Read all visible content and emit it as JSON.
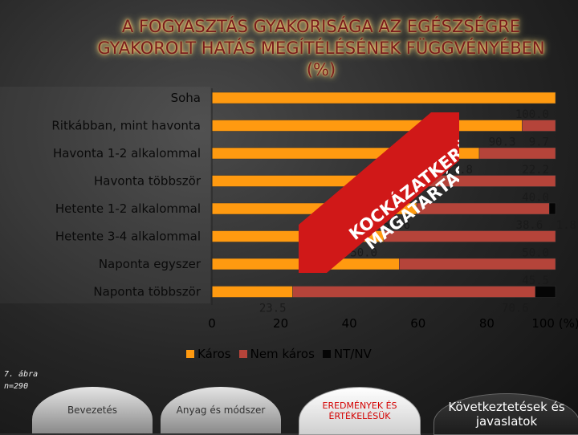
{
  "title_lines": [
    "A FOGYASZTÁS GYAKORISÁGA AZ EGÉSZSÉGRE",
    "GYAKOROLT HATÁS MEGÍTÉLÉSÉNEK FÜGGVÉNYÉBEN",
    "(%)"
  ],
  "sticker": {
    "line1": "KOCKÁZATKERÜLŐ",
    "line2": "MAGATARTÁS",
    "color": "#d01818"
  },
  "figure_note": [
    "7. ábra",
    "n=290"
  ],
  "nav": {
    "intro": "Bevezetés",
    "method": "Anyag és módszer",
    "results": "EREDMÉNYEK ÉS ÉRTÉKELÉSÜK",
    "conclusions": "Következtetések és javaslatok"
  },
  "colors": {
    "harmful": "#ff9a10",
    "not_harmful": "#b5443a",
    "nt_nv": "#050505"
  },
  "chart_data": {
    "type": "bar",
    "orientation": "horizontal",
    "stacked": true,
    "title": "A FOGYASZTÁS GYAKORISÁGA AZ EGÉSZSÉGRE GYAKOROLT HATÁS MEGÍTÉLÉSÉNEK FÜGGVÉNYÉBEN (%)",
    "categories": [
      "Soha",
      "Ritkábban, mint havonta",
      "Havonta 1-2 alkalommal",
      "Havonta többször",
      "Hetente 1-2 alkalommal",
      "Hetente 3-4 alkalommal",
      "Naponta egyszer",
      "Naponta többször"
    ],
    "series": [
      {
        "name": "Káros",
        "values": [
          100.0,
          90.3,
          77.8,
          60.0,
          59.6,
          50.0,
          54.5,
          23.5
        ]
      },
      {
        "name": "Nem káros",
        "values": [
          0,
          9.7,
          22.2,
          40.0,
          38.6,
          50.0,
          45.5,
          70.6
        ]
      },
      {
        "name": "NT/NV",
        "values": [
          0,
          0,
          0,
          0,
          1.8,
          0,
          0,
          5.9
        ]
      }
    ],
    "value_labels": [
      [
        "100.0",
        "",
        ""
      ],
      [
        "90.3",
        "9.7",
        ""
      ],
      [
        "77.8",
        "22.2",
        ""
      ],
      [
        "60.0",
        "40.0",
        ""
      ],
      [
        "59.6",
        "38.6",
        "1.8"
      ],
      [
        "50.0",
        "50.0",
        ""
      ],
      [
        "",
        "45.5",
        ""
      ],
      [
        "23.5",
        "70.6",
        "5.9"
      ]
    ],
    "x_ticks": [
      "0",
      "20",
      "40",
      "60",
      "80",
      "100 (%)"
    ],
    "x_tick_values": [
      0,
      20,
      40,
      60,
      80,
      100
    ],
    "xlim": [
      0,
      100
    ],
    "legend": [
      "Káros",
      "Nem káros",
      "NT/NV"
    ],
    "legend_position": "bottom",
    "grid": false
  }
}
